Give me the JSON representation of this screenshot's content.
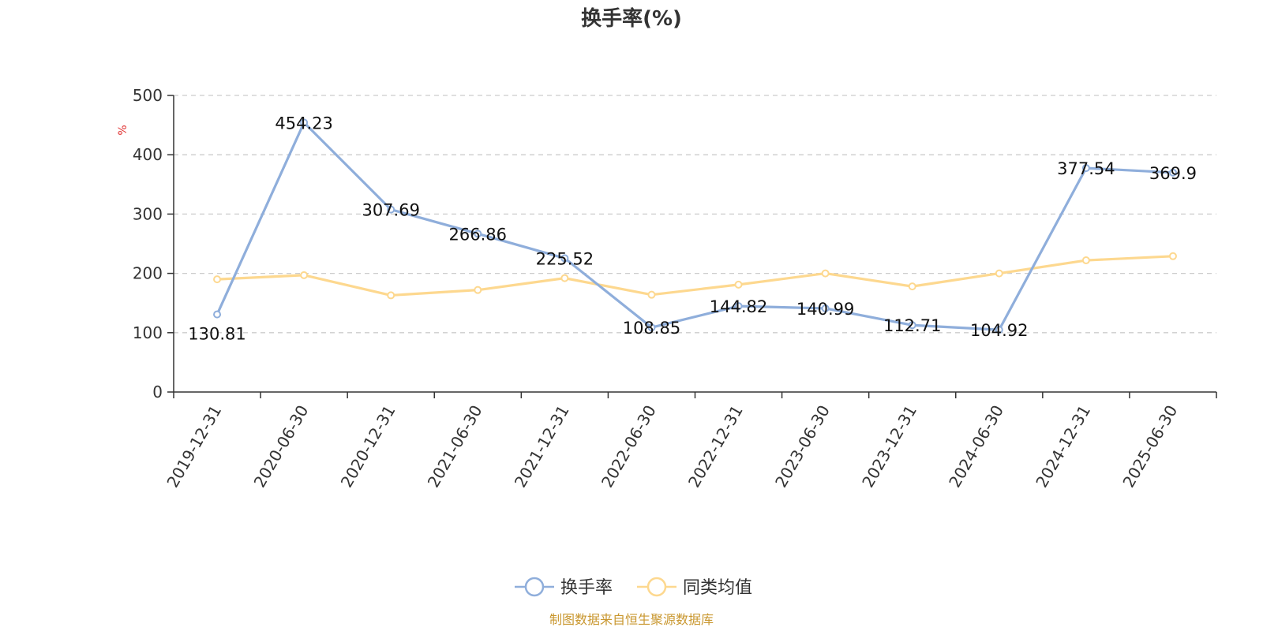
{
  "chart_data": {
    "type": "line",
    "title": "换手率(%)",
    "ylabel": "%",
    "xlabel": "",
    "ylim": [
      0,
      500
    ],
    "yticks": [
      0,
      100,
      200,
      300,
      400,
      500
    ],
    "grid": true,
    "categories": [
      "2019-12-31",
      "2020-06-30",
      "2020-12-31",
      "2021-06-30",
      "2021-12-31",
      "2022-06-30",
      "2022-12-31",
      "2023-06-30",
      "2023-12-31",
      "2024-06-30",
      "2024-12-31",
      "2025-06-30"
    ],
    "series": [
      {
        "name": "换手率",
        "color": "#8faedb",
        "show_labels": true,
        "values": [
          130.81,
          454.23,
          307.69,
          266.86,
          225.52,
          108.85,
          144.82,
          140.99,
          112.71,
          104.92,
          377.54,
          369.9
        ],
        "labels": [
          "130.81",
          "454.23",
          "307.69",
          "266.86",
          "225.52",
          "108.85",
          "144.82",
          "140.99",
          "112.71",
          "104.92",
          "377.54",
          "369.9"
        ]
      },
      {
        "name": "同类均值",
        "color": "#fdd88f",
        "show_labels": false,
        "values": [
          190,
          197,
          163,
          172,
          192,
          164,
          181,
          200,
          178,
          200,
          222,
          229
        ]
      }
    ],
    "legend_position": "bottom"
  },
  "colors": {
    "unit_label": "#e03030",
    "footer": "#c9972f",
    "axis": "#333333",
    "grid": "#cccccc"
  },
  "footer": "制图数据来自恒生聚源数据库"
}
